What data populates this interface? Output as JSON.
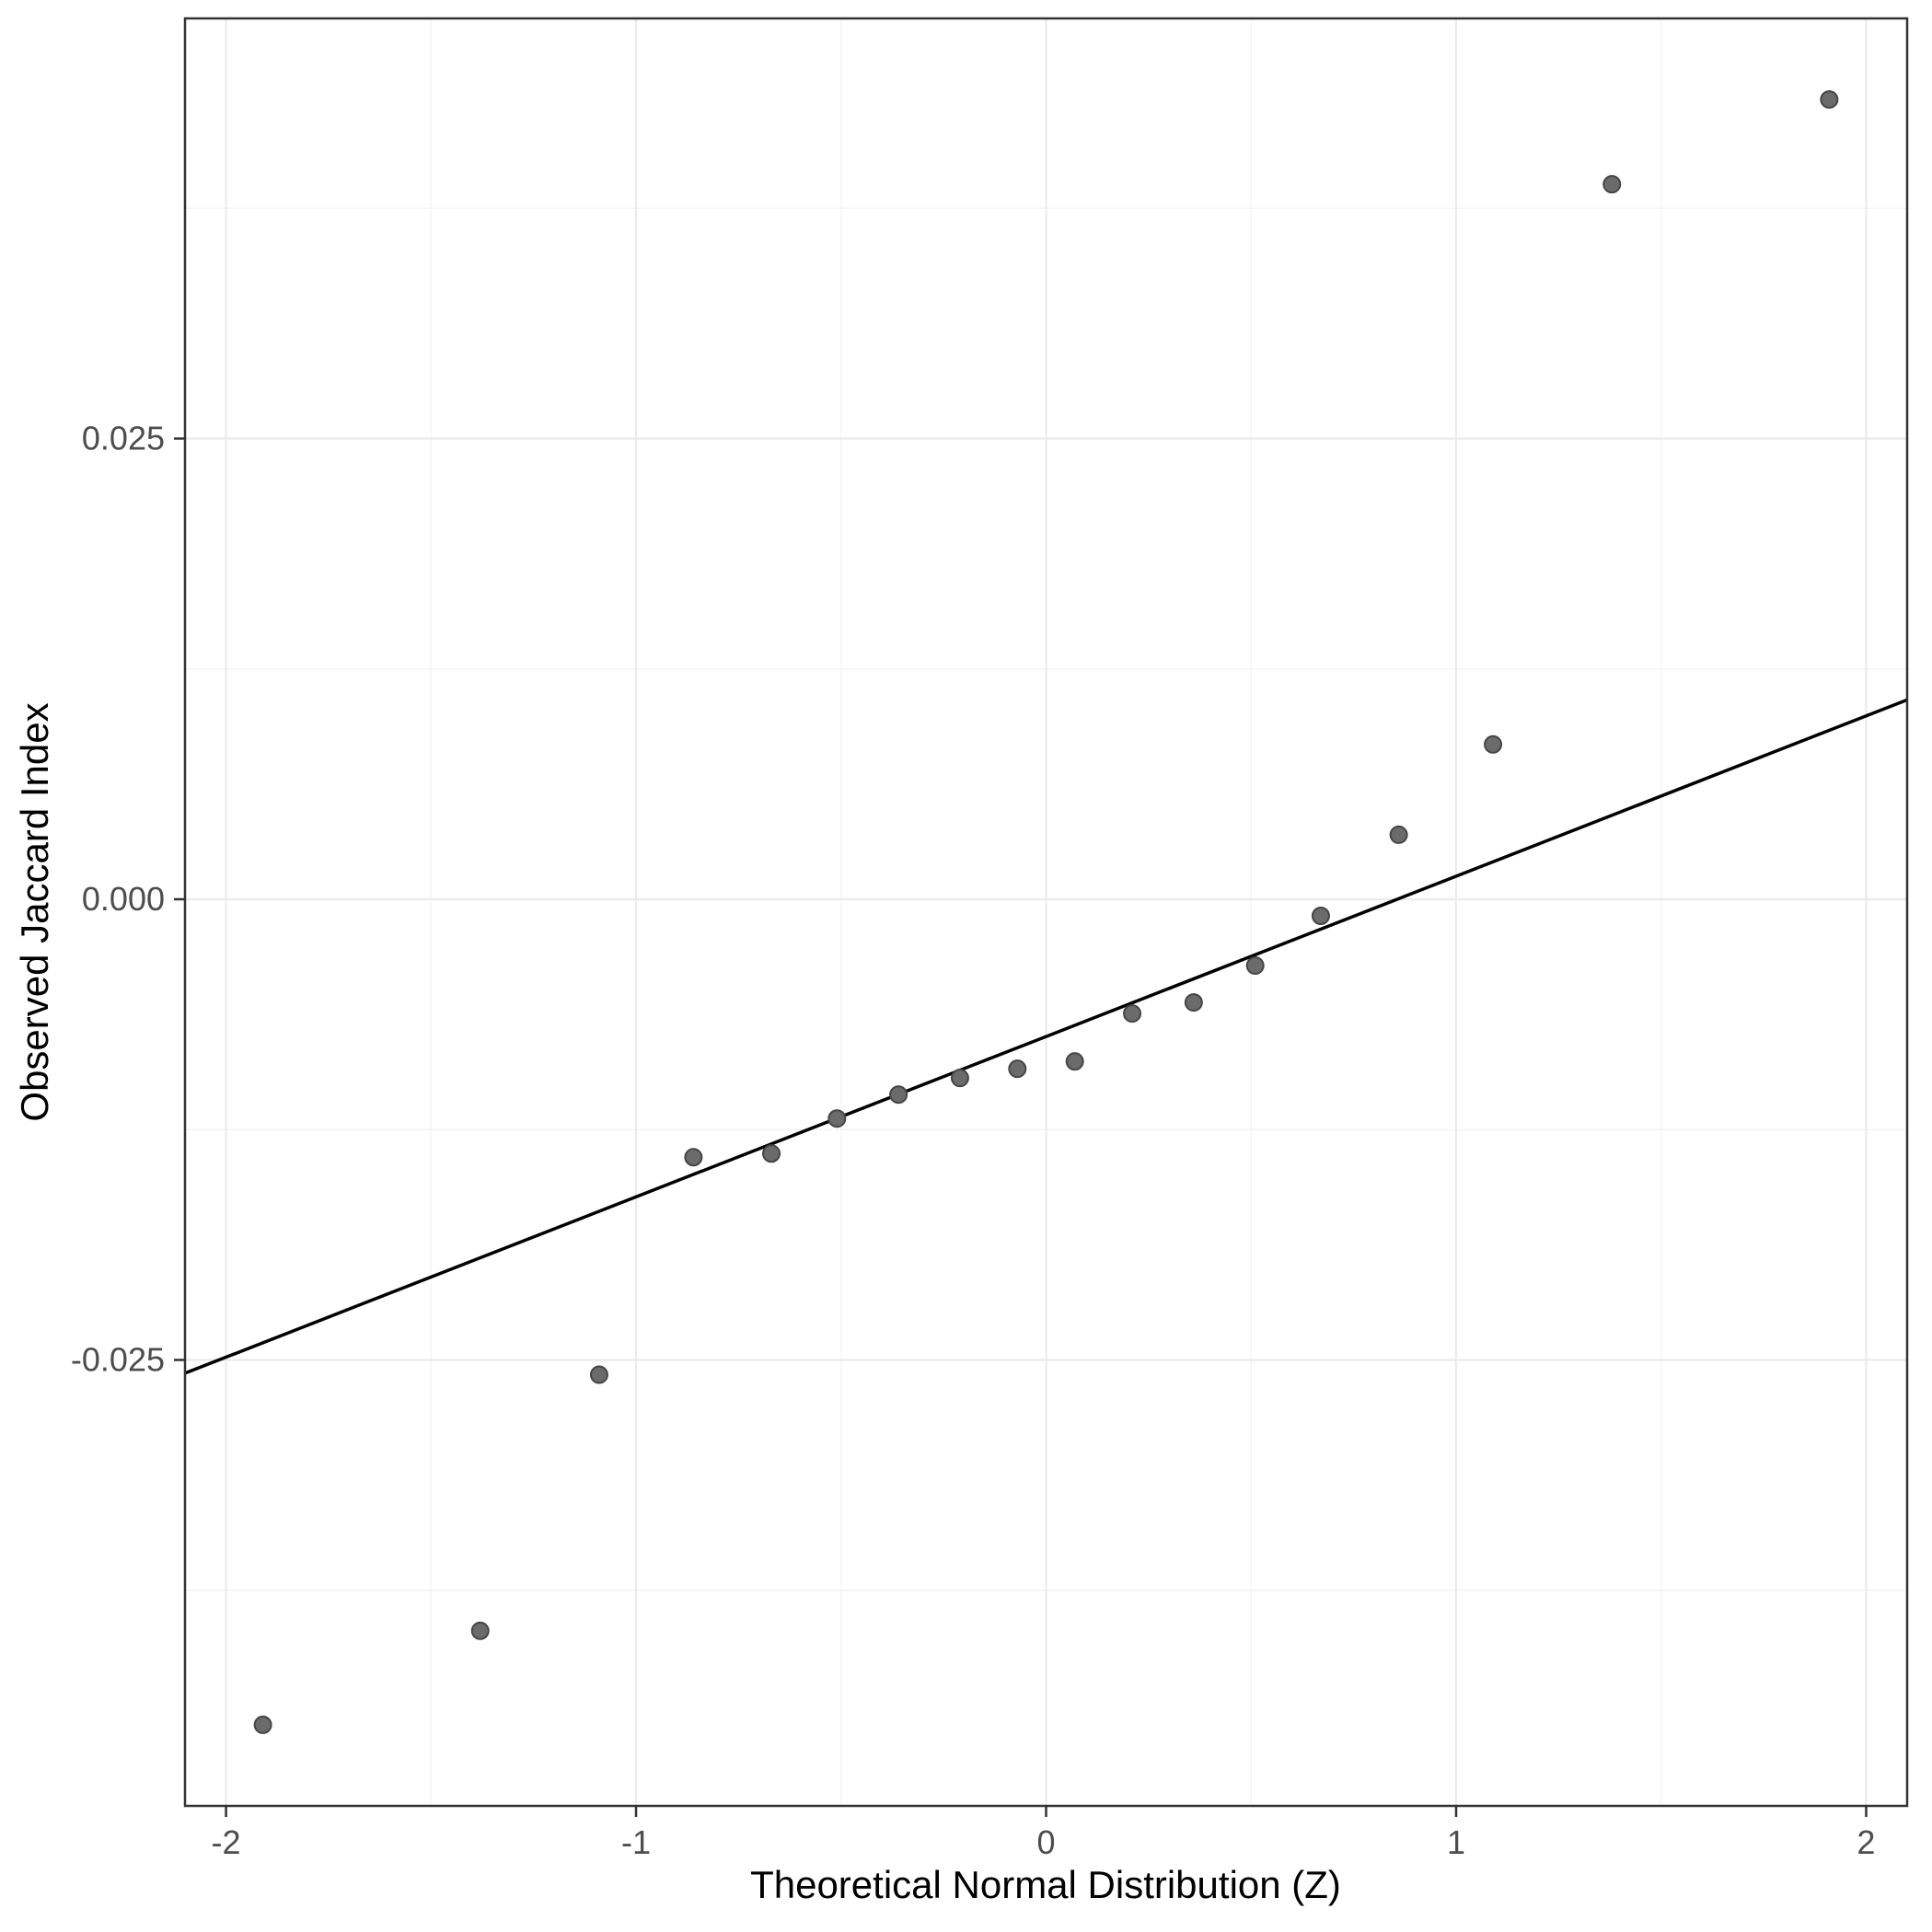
{
  "figure": {
    "kind": "qq-plot",
    "background": "#ffffff"
  },
  "chart_data": {
    "type": "scatter",
    "subtype": "qq-plot",
    "title": "",
    "xlabel": "Theoretical Normal Distribution (Z)",
    "ylabel": "Observed Jaccard Index",
    "xlim": [
      -2.1,
      2.1
    ],
    "ylim": [
      -0.0492,
      0.0478
    ],
    "x_major_ticks": [
      -2,
      -1,
      0,
      1,
      2
    ],
    "x_tick_labels": [
      "-2",
      "-1",
      "0",
      "1",
      "2"
    ],
    "x_minor_ticks": [
      -1.5,
      -0.5,
      0.5,
      1.5
    ],
    "y_major_ticks": [
      -0.025,
      0.0,
      0.025
    ],
    "y_tick_labels": [
      "-0.025",
      "0.000",
      "0.025"
    ],
    "y_minor_ticks": [
      -0.0375,
      -0.0125,
      0.0125,
      0.0375
    ],
    "grid": "on",
    "legend": "none",
    "points": [
      [
        -1.91,
        -0.0448
      ],
      [
        -1.38,
        -0.0397
      ],
      [
        -1.09,
        -0.0258
      ],
      [
        -0.86,
        -0.014
      ],
      [
        -0.67,
        -0.0138
      ],
      [
        -0.51,
        -0.0119
      ],
      [
        -0.36,
        -0.0106
      ],
      [
        -0.21,
        -0.0097
      ],
      [
        -0.07,
        -0.0092
      ],
      [
        0.07,
        -0.0088
      ],
      [
        0.21,
        -0.0062
      ],
      [
        0.36,
        -0.0056
      ],
      [
        0.51,
        -0.0036
      ],
      [
        0.67,
        -0.0009
      ],
      [
        0.86,
        0.0035
      ],
      [
        1.09,
        0.0084
      ],
      [
        1.38,
        0.0388
      ],
      [
        1.91,
        0.0434
      ]
    ],
    "reference_line": {
      "slope": 0.0087,
      "intercept": -0.00745
    },
    "colors": {
      "point_fill": "#6b6b6b",
      "point_stroke": "#454545",
      "reference_line": "#000000",
      "grid_major": "#ebebeb",
      "grid_minor": "#f5f5f5",
      "panel_border": "#333333",
      "tick_mark": "#333333",
      "tick_label": "#4d4d4d",
      "axis_title": "#000000",
      "panel_background": "#ffffff"
    }
  }
}
